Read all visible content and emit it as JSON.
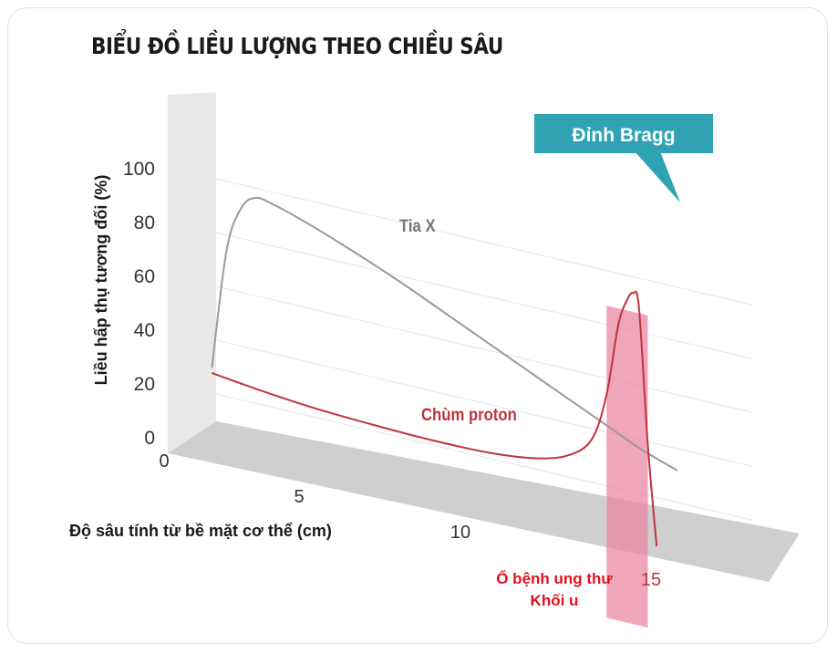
{
  "chart_data": {
    "type": "line",
    "title": "BIỂU ĐỒ LIỀU LƯỢNG THEO CHIỀU SÂU",
    "ylabel": "Liều hấp thụ tương đối (%)",
    "xlabel": "Độ sâu tính từ bề mặt cơ thể (cm)",
    "yticks": [
      "0",
      "20",
      "40",
      "60",
      "80",
      "100"
    ],
    "xticks": [
      "0",
      "5",
      "10",
      "15"
    ],
    "ylim": [
      0,
      100
    ],
    "xlim": [
      0,
      20
    ],
    "series": [
      {
        "name": "Tia X",
        "color": "#9a9a9a",
        "x": [
          1.5,
          2.0,
          2.5,
          3.0,
          3.6,
          4.5,
          6,
          8,
          10,
          12,
          14,
          15,
          16,
          17.3
        ],
        "y": [
          30,
          75,
          92,
          97,
          96,
          93,
          87,
          78,
          68,
          58,
          48,
          43,
          38,
          33
        ]
      },
      {
        "name": "Chùm proton",
        "color": "#c0343c",
        "x": [
          1.5,
          3,
          5,
          7,
          9,
          11,
          12.5,
          13.6,
          14.4,
          14.9,
          15.3,
          15.6,
          15.8,
          16.0,
          16.3,
          16.6
        ],
        "y": [
          28,
          26,
          24,
          23,
          22.5,
          23,
          25,
          29,
          37,
          55,
          82,
          92,
          95,
          90,
          40,
          3
        ]
      }
    ],
    "annotations": {
      "peak": "Đỉnh Bragg",
      "tumor_line1": "Ổ bệnh ung thư",
      "tumor_line2": "Khối u",
      "tumor_range": [
        14.9,
        16.3
      ]
    }
  },
  "colors": {
    "peak_box": "#2fa3b4",
    "tumor_band": "#e9839f",
    "proton": "#c0343c",
    "xray": "#9a9a9a",
    "floor": "#cfcfcf",
    "wall": "#e8e8e8"
  }
}
